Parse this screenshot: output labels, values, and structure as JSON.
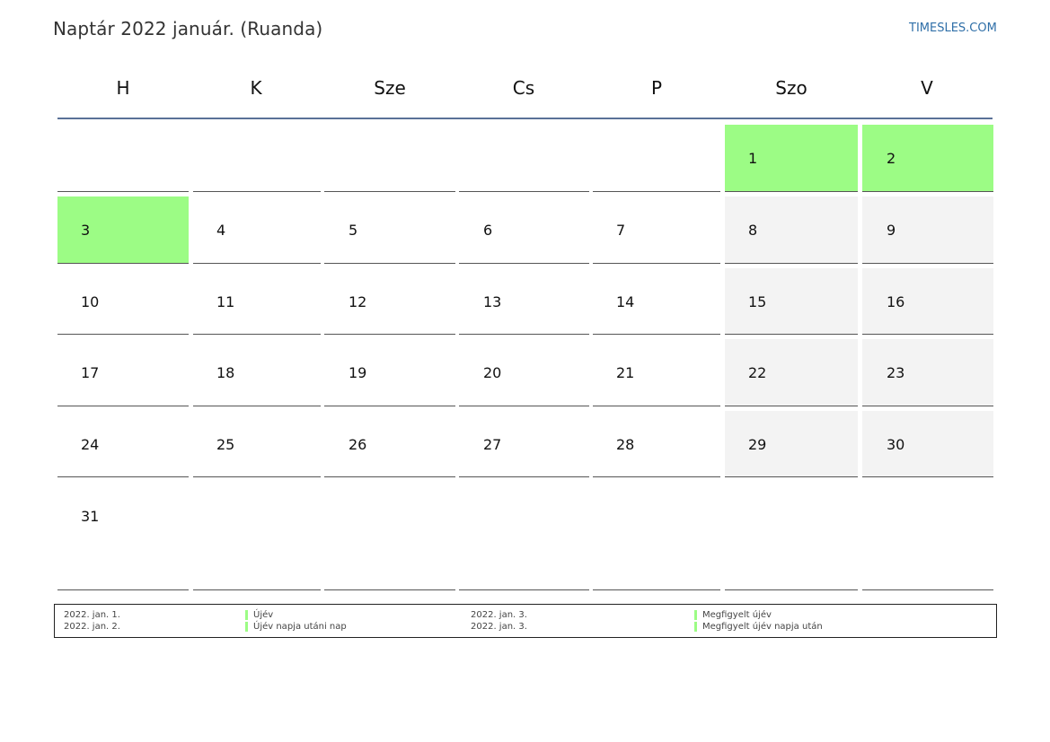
{
  "title": "Naptár 2022 január. (Ruanda)",
  "brand": "TIMESLES.COM",
  "weekdays": [
    "H",
    "K",
    "Sze",
    "Cs",
    "P",
    "Szo",
    "V"
  ],
  "holiday_color": "#9cfc85",
  "weekend_color": "#f3f3f3",
  "weeks": [
    [
      "",
      "",
      "",
      "",
      "",
      "1",
      "2"
    ],
    [
      "3",
      "4",
      "5",
      "6",
      "7",
      "8",
      "9"
    ],
    [
      "10",
      "11",
      "12",
      "13",
      "14",
      "15",
      "16"
    ],
    [
      "17",
      "18",
      "19",
      "20",
      "21",
      "22",
      "23"
    ],
    [
      "24",
      "25",
      "26",
      "27",
      "28",
      "29",
      "30"
    ],
    [
      "31",
      "",
      "",
      "",
      "",
      "",
      ""
    ]
  ],
  "holiday_days": [
    "1",
    "2",
    "3"
  ],
  "legend": [
    {
      "date": "2022. jan. 1.",
      "name": "Újév"
    },
    {
      "date": "2022. jan. 2.",
      "name": "Újév napja utáni nap"
    },
    {
      "date": "2022. jan. 3.",
      "name": "Megfigyelt újév"
    },
    {
      "date": "2022. jan. 3.",
      "name": "Megfigyelt újév napja után"
    }
  ]
}
